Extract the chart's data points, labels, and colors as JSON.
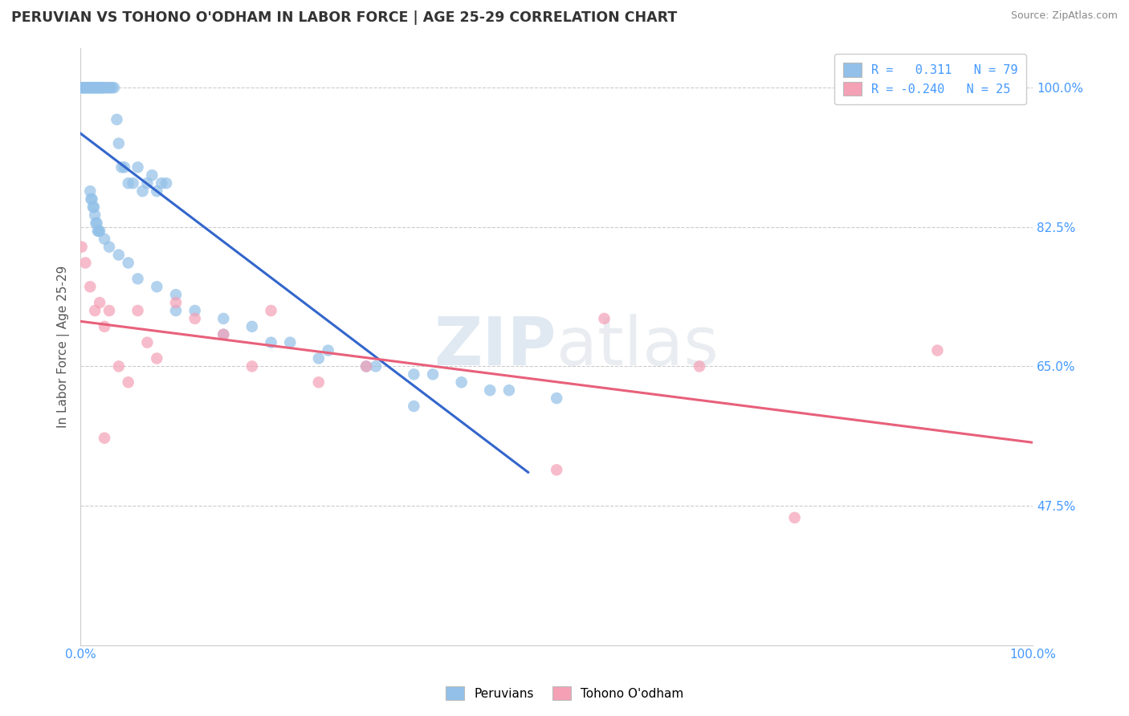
{
  "title": "PERUVIAN VS TOHONO O'ODHAM IN LABOR FORCE | AGE 25-29 CORRELATION CHART",
  "source": "Source: ZipAtlas.com",
  "ylabel": "In Labor Force | Age 25-29",
  "xlim": [
    0.0,
    1.0
  ],
  "ylim": [
    0.3,
    1.05
  ],
  "yticks": [
    0.475,
    0.65,
    0.825,
    1.0
  ],
  "ytick_labels": [
    "47.5%",
    "65.0%",
    "82.5%",
    "100.0%"
  ],
  "xtick_labels": [
    "0.0%",
    "100.0%"
  ],
  "r_blue": 0.311,
  "n_blue": 79,
  "r_pink": -0.24,
  "n_pink": 25,
  "blue_color": "#92C0E8",
  "pink_color": "#F4A0B5",
  "blue_line_color": "#3366CC",
  "pink_line_color": "#E8607A",
  "legend_blue_label": "Peruvians",
  "legend_pink_label": "Tohono O'odham",
  "watermark_zip": "ZIP",
  "watermark_atlas": "atlas",
  "blue_scatter_x": [
    0.001,
    0.002,
    0.003,
    0.004,
    0.005,
    0.006,
    0.007,
    0.008,
    0.009,
    0.01,
    0.011,
    0.012,
    0.013,
    0.014,
    0.015,
    0.016,
    0.017,
    0.018,
    0.019,
    0.02,
    0.021,
    0.022,
    0.023,
    0.024,
    0.025,
    0.027,
    0.029,
    0.031,
    0.033,
    0.035,
    0.038,
    0.04,
    0.043,
    0.046,
    0.05,
    0.055,
    0.06,
    0.065,
    0.07,
    0.075,
    0.08,
    0.085,
    0.09,
    0.01,
    0.011,
    0.012,
    0.013,
    0.014,
    0.015,
    0.016,
    0.017,
    0.018,
    0.019,
    0.02,
    0.025,
    0.03,
    0.04,
    0.05,
    0.06,
    0.08,
    0.1,
    0.12,
    0.15,
    0.18,
    0.22,
    0.26,
    0.3,
    0.35,
    0.4,
    0.45,
    0.1,
    0.15,
    0.2,
    0.25,
    0.31,
    0.37,
    0.43,
    0.5,
    0.35
  ],
  "blue_scatter_y": [
    1.0,
    1.0,
    1.0,
    1.0,
    1.0,
    1.0,
    1.0,
    1.0,
    1.0,
    1.0,
    1.0,
    1.0,
    1.0,
    1.0,
    1.0,
    1.0,
    1.0,
    1.0,
    1.0,
    1.0,
    1.0,
    1.0,
    1.0,
    1.0,
    1.0,
    1.0,
    1.0,
    1.0,
    1.0,
    1.0,
    0.96,
    0.93,
    0.9,
    0.9,
    0.88,
    0.88,
    0.9,
    0.87,
    0.88,
    0.89,
    0.87,
    0.88,
    0.88,
    0.87,
    0.86,
    0.86,
    0.85,
    0.85,
    0.84,
    0.83,
    0.83,
    0.82,
    0.82,
    0.82,
    0.81,
    0.8,
    0.79,
    0.78,
    0.76,
    0.75,
    0.74,
    0.72,
    0.71,
    0.7,
    0.68,
    0.67,
    0.65,
    0.64,
    0.63,
    0.62,
    0.72,
    0.69,
    0.68,
    0.66,
    0.65,
    0.64,
    0.62,
    0.61,
    0.6
  ],
  "pink_scatter_x": [
    0.001,
    0.005,
    0.01,
    0.015,
    0.02,
    0.025,
    0.03,
    0.04,
    0.05,
    0.06,
    0.07,
    0.08,
    0.1,
    0.12,
    0.15,
    0.18,
    0.2,
    0.25,
    0.3,
    0.025,
    0.55,
    0.65,
    0.75,
    0.5,
    0.9
  ],
  "pink_scatter_y": [
    0.8,
    0.78,
    0.75,
    0.72,
    0.73,
    0.7,
    0.72,
    0.65,
    0.63,
    0.72,
    0.68,
    0.66,
    0.73,
    0.71,
    0.69,
    0.65,
    0.72,
    0.63,
    0.65,
    0.56,
    0.71,
    0.65,
    0.46,
    0.52,
    0.67
  ]
}
